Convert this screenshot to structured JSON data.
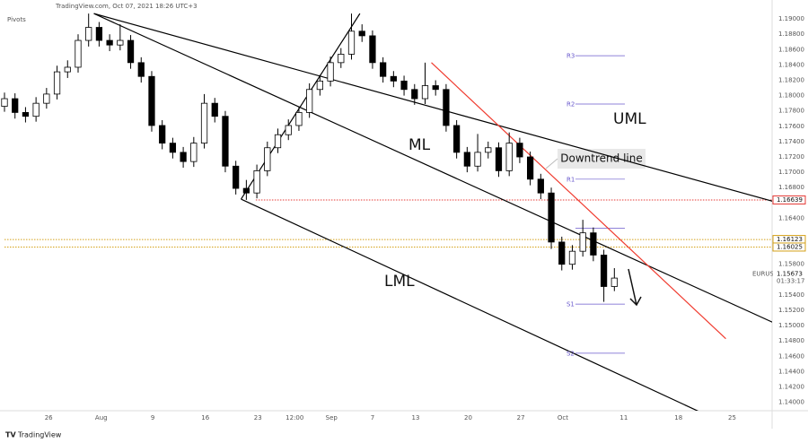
{
  "chart_data": {
    "type": "candlestick",
    "header": "TradingView.com, Oct 07, 2021 18:26 UTC+3",
    "indicator": "Pivots",
    "symbol": "EURUSD",
    "last_price": 1.15673,
    "countdown": "01:33:17",
    "footer": "TradingView",
    "annotation": "Downtrend line",
    "up_color": "#ffffff",
    "down_color": "#000000",
    "x": [
      0,
      1,
      2,
      3,
      4,
      5,
      6,
      7,
      8,
      9,
      10,
      11,
      12,
      13,
      14,
      15,
      16,
      17,
      18,
      19,
      20,
      21,
      22,
      23,
      24,
      25,
      26,
      27,
      28,
      29,
      30,
      31,
      32,
      33,
      34,
      35,
      36,
      37,
      38,
      39,
      40,
      41,
      42,
      43,
      44,
      45,
      46,
      47,
      48,
      49,
      50,
      51,
      52,
      53,
      54,
      55,
      56,
      57,
      58
    ],
    "open": [
      1.1786,
      1.1796,
      1.1778,
      1.1773,
      1.179,
      1.1802,
      1.1831,
      1.1837,
      1.1872,
      1.1889,
      1.1872,
      1.1866,
      1.1872,
      1.1843,
      1.1825,
      1.1761,
      1.1738,
      1.1726,
      1.1714,
      1.1738,
      1.179,
      1.1773,
      1.1708,
      1.1679,
      1.1673,
      1.1702,
      1.1732,
      1.1749,
      1.1761,
      1.1778,
      1.1808,
      1.1819,
      1.1843,
      1.1854,
      1.1884,
      1.1878,
      1.1843,
      1.1825,
      1.1819,
      1.1808,
      1.1796,
      1.1813,
      1.1808,
      1.1761,
      1.1726,
      1.1708,
      1.1726,
      1.1732,
      1.1702,
      1.1738,
      1.172,
      1.1691,
      1.1673,
      1.1609,
      1.158,
      1.1597,
      1.1621,
      1.1592,
      1.1551
    ],
    "high": [
      1.1804,
      1.1803,
      1.1785,
      1.1798,
      1.181,
      1.1839,
      1.1846,
      1.188,
      1.1907,
      1.1896,
      1.188,
      1.1893,
      1.1879,
      1.185,
      1.1832,
      1.1768,
      1.1745,
      1.1733,
      1.1746,
      1.1802,
      1.1797,
      1.178,
      1.1715,
      1.169,
      1.171,
      1.174,
      1.1757,
      1.1769,
      1.1786,
      1.1816,
      1.1827,
      1.1851,
      1.1862,
      1.1907,
      1.1893,
      1.1885,
      1.185,
      1.1832,
      1.1826,
      1.1815,
      1.1843,
      1.182,
      1.1815,
      1.1768,
      1.1733,
      1.175,
      1.174,
      1.1739,
      1.1752,
      1.1745,
      1.1727,
      1.1698,
      1.168,
      1.1616,
      1.1605,
      1.1638,
      1.1628,
      1.1599,
      1.1575
    ],
    "low": [
      1.1779,
      1.177,
      1.1765,
      1.1766,
      1.1783,
      1.1795,
      1.1823,
      1.183,
      1.1864,
      1.1864,
      1.1858,
      1.1859,
      1.1835,
      1.1817,
      1.1753,
      1.173,
      1.1718,
      1.1706,
      1.1707,
      1.1731,
      1.1765,
      1.17,
      1.1671,
      1.1664,
      1.1666,
      1.1695,
      1.1725,
      1.1742,
      1.1754,
      1.1771,
      1.18,
      1.1812,
      1.1836,
      1.1847,
      1.187,
      1.1835,
      1.1817,
      1.1811,
      1.18,
      1.1788,
      1.1789,
      1.18,
      1.1753,
      1.1718,
      1.17,
      1.1701,
      1.1718,
      1.1694,
      1.1695,
      1.1712,
      1.1683,
      1.1665,
      1.16,
      1.1572,
      1.1573,
      1.159,
      1.1584,
      1.1531,
      1.1545
    ],
    "close": [
      1.1796,
      1.1778,
      1.1773,
      1.179,
      1.1802,
      1.1831,
      1.1837,
      1.1872,
      1.1889,
      1.1872,
      1.1866,
      1.1872,
      1.1843,
      1.1825,
      1.1761,
      1.1738,
      1.1726,
      1.1714,
      1.1738,
      1.179,
      1.1773,
      1.1708,
      1.1679,
      1.1673,
      1.1702,
      1.1732,
      1.1749,
      1.1761,
      1.1778,
      1.1808,
      1.1819,
      1.1843,
      1.1854,
      1.1884,
      1.1878,
      1.1843,
      1.1825,
      1.1819,
      1.1808,
      1.1796,
      1.1813,
      1.1808,
      1.1761,
      1.1726,
      1.1708,
      1.1726,
      1.1732,
      1.1702,
      1.1738,
      1.172,
      1.1691,
      1.1673,
      1.1609,
      1.158,
      1.1597,
      1.1621,
      1.1592,
      1.1551,
      1.1562
    ],
    "xlim": [
      0,
      73
    ],
    "xticks": [
      {
        "value": 4.2,
        "label": "26"
      },
      {
        "value": 9.2,
        "label": "Aug"
      },
      {
        "value": 14.1,
        "label": "9"
      },
      {
        "value": 19.1,
        "label": "16"
      },
      {
        "value": 24.1,
        "label": "23"
      },
      {
        "value": 27.6,
        "label": "12:00"
      },
      {
        "value": 31.1,
        "label": "Sep"
      },
      {
        "value": 35,
        "label": "7"
      },
      {
        "value": 39.1,
        "label": "13"
      },
      {
        "value": 44.1,
        "label": "20"
      },
      {
        "value": 49.1,
        "label": "27"
      },
      {
        "value": 53.1,
        "label": "Oct"
      },
      {
        "value": 58.9,
        "label": "11"
      },
      {
        "value": 64.1,
        "label": "18"
      },
      {
        "value": 69.2,
        "label": "25"
      }
    ],
    "ylim": [
      1.1389,
      1.1913
    ],
    "yticks": [
      {
        "value": 1.14,
        "label": "1.14000"
      },
      {
        "value": 1.142,
        "label": "1.14200"
      },
      {
        "value": 1.144,
        "label": "1.14400"
      },
      {
        "value": 1.146,
        "label": "1.14600"
      },
      {
        "value": 1.148,
        "label": "1.14800"
      },
      {
        "value": 1.15,
        "label": "1.15000"
      },
      {
        "value": 1.152,
        "label": "1.15200"
      },
      {
        "value": 1.154,
        "label": "1.15400"
      },
      {
        "value": 1.158,
        "label": "1.15800"
      },
      {
        "value": 1.164,
        "label": "1.16400"
      },
      {
        "value": 1.168,
        "label": "1.16800"
      },
      {
        "value": 1.17,
        "label": "1.17000"
      },
      {
        "value": 1.172,
        "label": "1.17200"
      },
      {
        "value": 1.174,
        "label": "1.17400"
      },
      {
        "value": 1.176,
        "label": "1.17600"
      },
      {
        "value": 1.178,
        "label": "1.17800"
      },
      {
        "value": 1.18,
        "label": "1.18000"
      },
      {
        "value": 1.182,
        "label": "1.18200"
      },
      {
        "value": 1.184,
        "label": "1.18400"
      },
      {
        "value": 1.186,
        "label": "1.18600"
      },
      {
        "value": 1.188,
        "label": "1.18800"
      },
      {
        "value": 1.19,
        "label": "1.19000"
      }
    ],
    "grid": false,
    "pivot_x": [
      54.3,
      59
    ],
    "pivot_color": "#6a5acd",
    "pivots": [
      {
        "label": "R3",
        "value": 1.1852
      },
      {
        "label": "R2",
        "value": 1.1789
      },
      {
        "label": "R1",
        "value": 1.1691
      },
      {
        "label": null,
        "value": 1.1627
      },
      {
        "label": "S1",
        "value": 1.1528
      },
      {
        "label": "S2",
        "value": 1.1464
      }
    ],
    "levels": [
      {
        "value": 1.16639,
        "color": "#e53935",
        "from": 23.9
      },
      {
        "value": 1.16123,
        "color": "#d4a017"
      },
      {
        "value": 1.16025,
        "color": "#d4a017"
      }
    ],
    "drawings": [
      {
        "label": "UML",
        "color": "#000000",
        "points": [
          [
            8.5,
            1.1907
          ],
          [
            73.1,
            1.1662
          ]
        ]
      },
      {
        "label": "ML",
        "color": "#000000",
        "points": [
          [
            8.5,
            1.1907
          ],
          [
            73.1,
            1.1504
          ]
        ]
      },
      {
        "label": "LML",
        "color": "#000000",
        "points": [
          [
            22.5,
            1.1665
          ],
          [
            66.2,
            1.1387
          ]
        ]
      },
      {
        "color": "#000000",
        "points": [
          [
            22.5,
            1.1665
          ],
          [
            33.8,
            1.1907
          ]
        ]
      },
      {
        "color": "#f03a2e",
        "points": [
          [
            40.6,
            1.1843
          ],
          [
            68.6,
            1.1483
          ]
        ]
      }
    ]
  }
}
